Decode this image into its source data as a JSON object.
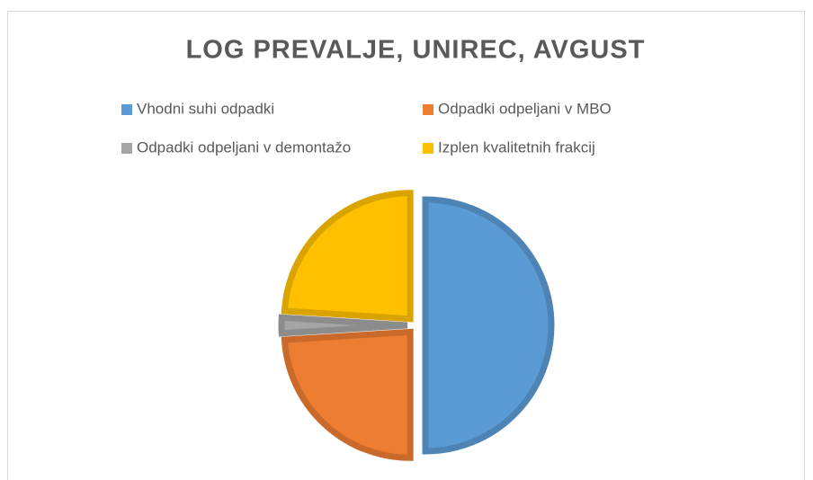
{
  "chart_data": {
    "type": "pie",
    "title": "LOG PREVALJE, UNIREC, AVGUST",
    "categories": [
      "Vhodni suhi odpadki",
      "Odpadki odpeljani v MBO",
      "Odpadki odpeljani v demontažo",
      "Izplen kvalitetnih frakcij"
    ],
    "values": [
      50,
      24,
      2,
      24
    ],
    "colors": [
      "#5b9bd5",
      "#ed7d31",
      "#a5a5a5",
      "#ffc000"
    ],
    "legend": "top"
  }
}
